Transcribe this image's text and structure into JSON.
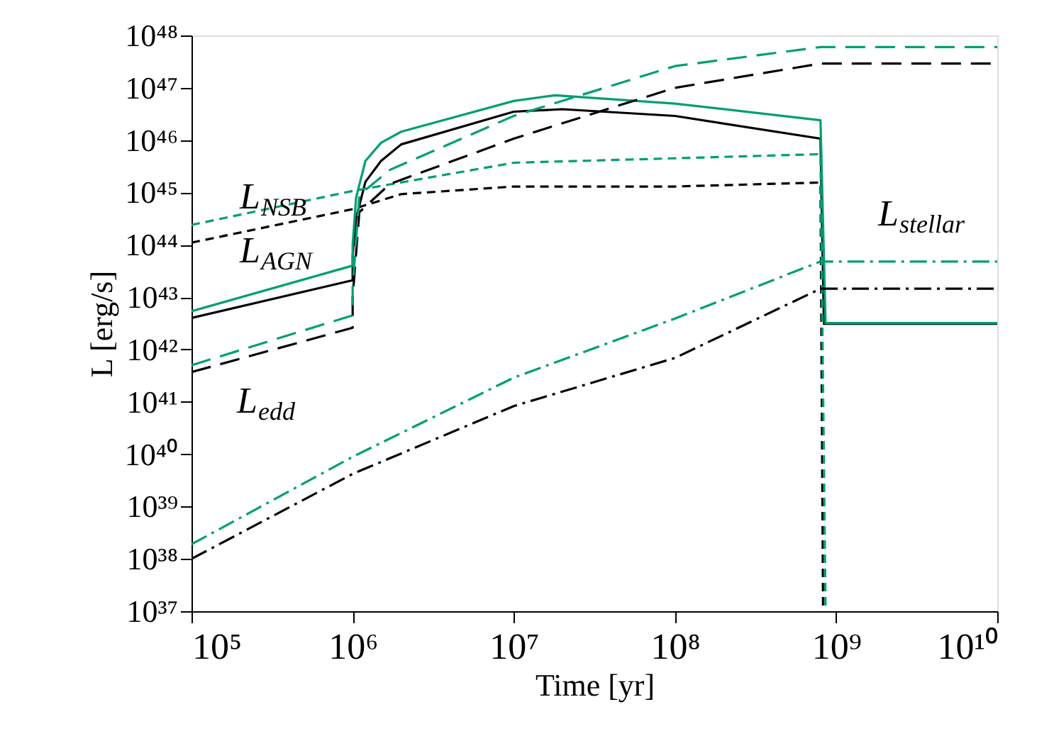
{
  "chart_data": {
    "type": "line",
    "xlabel": "Time [yr]",
    "ylabel": "L [erg/s]",
    "log": "xy",
    "grid": false,
    "xlim": [
      100000.0,
      10000000000.0
    ],
    "ylim": [
      1e+37,
      1e+48
    ],
    "xticks": [
      {
        "value": 100000.0,
        "label": "10⁵"
      },
      {
        "value": 1000000.0,
        "label": "10⁶"
      },
      {
        "value": 10000000.0,
        "label": "10⁷"
      },
      {
        "value": 100000000.0,
        "label": "10⁸"
      },
      {
        "value": 1000000000.0,
        "label": "10⁹"
      },
      {
        "value": 10000000000.0,
        "label": "10¹⁰"
      }
    ],
    "yticks": [
      {
        "value": 1e+37,
        "label": "10³⁷"
      },
      {
        "value": 1e+38,
        "label": "10³⁸"
      },
      {
        "value": 1e+39,
        "label": "10³⁹"
      },
      {
        "value": 1e+40,
        "label": "10⁴⁰"
      },
      {
        "value": 1e+41,
        "label": "10⁴¹"
      },
      {
        "value": 1e+42,
        "label": "10⁴²"
      },
      {
        "value": 1e+43,
        "label": "10⁴³"
      },
      {
        "value": 1e+44,
        "label": "10⁴⁴"
      },
      {
        "value": 1e+45,
        "label": "10⁴⁵"
      },
      {
        "value": 1e+46,
        "label": "10⁴⁶"
      },
      {
        "value": 1e+47,
        "label": "10⁴⁷"
      },
      {
        "value": 1e+48,
        "label": "10⁴⁸"
      }
    ],
    "series": [
      {
        "color": "#000000",
        "line_style": "solid",
        "x": [
          100000.0,
          1000000.0,
          1000000.0,
          1050000.0,
          1200000.0,
          1500000.0,
          2000000.0,
          10000000.0,
          20000000.0,
          100000000.0,
          800000000.0,
          840000000.0,
          10000000000.0
        ],
        "values": [
          4e+42,
          2.1e+43,
          6.3e+43,
          3.2e+44,
          1.6e+45,
          4e+45,
          8.3e+45,
          3.5e+46,
          3.9e+46,
          2.9e+46,
          1.07e+46,
          3.1e+42,
          3.1e+42
        ]
      },
      {
        "color": "#009e73",
        "line_style": "solid",
        "x": [
          100000.0,
          1000000.0,
          1000000.0,
          1050000.0,
          1200000.0,
          1500000.0,
          2000000.0,
          10000000.0,
          18000000.0,
          100000000.0,
          800000000.0,
          860000000.0,
          10000000000.0
        ],
        "values": [
          5.4e+42,
          4e+43,
          1e+44,
          7.9e+44,
          4e+45,
          8.9e+45,
          1.45e+46,
          5.6e+46,
          7.2e+46,
          5e+46,
          2.4e+46,
          3.2e+42,
          3.2e+42
        ]
      },
      {
        "color": "#000000",
        "line_style": "dashed",
        "x": [
          100000.0,
          1000000.0,
          2000000.0,
          10000000.0,
          100000000.0,
          800000000.0,
          830000000.0
        ],
        "values": [
          1.1e+44,
          4.8e+44,
          9.3e+44,
          1.3e+45,
          1.3e+45,
          1.55e+45,
          1e+37
        ]
      },
      {
        "color": "#009e73",
        "line_style": "dashed",
        "x": [
          100000.0,
          1000000.0,
          10000000.0,
          100000000.0,
          800000000.0,
          860000000.0
        ],
        "values": [
          2.4e+44,
          1.07e+45,
          3.7e+45,
          4.5e+45,
          5.4e+45,
          1e+37
        ]
      },
      {
        "color": "#000000",
        "line_style": "longdashed",
        "x": [
          100000.0,
          1000000.0,
          1000000.0,
          1100000.0,
          1700000.0,
          10000000.0,
          100000000.0,
          800000000.0,
          10000000000.0
        ],
        "values": [
          3.7e+41,
          2.6e+42,
          1e+43,
          4.2e+44,
          1.45e+45,
          1.07e+46,
          1e+47,
          2.9e+47,
          2.9e+47
        ]
      },
      {
        "color": "#009e73",
        "line_style": "longdashed",
        "x": [
          100000.0,
          1000000.0,
          1000000.0,
          1100000.0,
          1700000.0,
          10000000.0,
          100000000.0,
          800000000.0,
          10000000000.0
        ],
        "values": [
          5e+41,
          4.5e+42,
          1.5e+43,
          8.9e+44,
          2.7e+45,
          2.9e+46,
          2.6e+47,
          6e+47,
          6e+47
        ]
      },
      {
        "color": "#000000",
        "line_style": "dashdot",
        "x": [
          100000.0,
          1000000.0,
          10000000.0,
          100000000.0,
          800000000.0,
          10000000000.0
        ],
        "values": [
          1e+38,
          4.2e+39,
          8.3e+40,
          6.9e+41,
          1.45e+43,
          1.45e+43
        ]
      },
      {
        "color": "#009e73",
        "line_style": "dashdot",
        "x": [
          100000.0,
          1000000.0,
          10000000.0,
          100000000.0,
          800000000.0,
          10000000000.0
        ],
        "values": [
          1.9e+38,
          8.9e+39,
          2.9e+41,
          3.9e+42,
          4.8e+43,
          4.8e+43
        ]
      }
    ],
    "annotations": [
      "L$_{NSB}$",
      "L$_{AGN}$",
      "L$_{edd}$",
      "L$_{stellar}$"
    ]
  }
}
